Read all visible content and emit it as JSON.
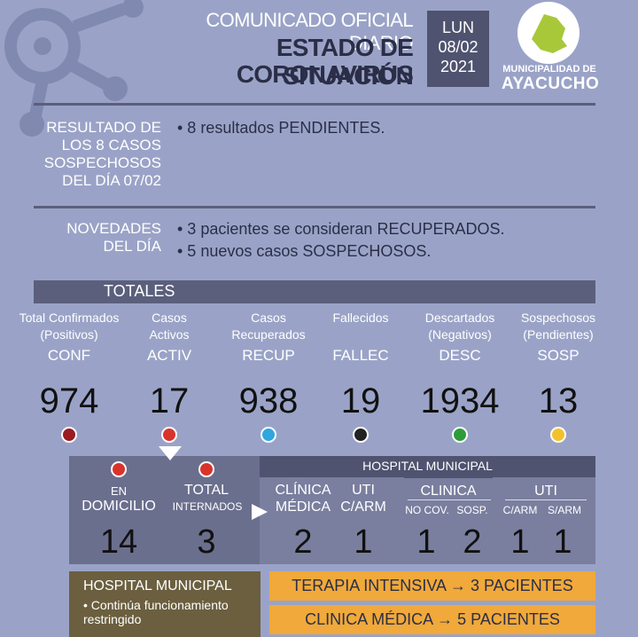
{
  "header": {
    "line1": "COMUNICADO OFICIAL DIARIO",
    "line2": "ESTADO DE SITUACIÓN",
    "line3": "CORONAVIRUS",
    "day": "LUN",
    "date": "08/02",
    "year": "2021",
    "logo_line1": "MUNICIPALIDAD DE",
    "logo_line2": "AYACUCHO"
  },
  "results": {
    "label_lines": [
      "RESULTADO DE",
      "LOS 8 CASOS",
      "SOSPECHOSOS",
      "DEL DÍA 07/02"
    ],
    "bullets": [
      "• 8 resultados PENDIENTES."
    ]
  },
  "news": {
    "label_lines": [
      "NOVEDADES",
      "DEL DÍA"
    ],
    "bullets": [
      "• 3 pacientes se consideran RECUPERADOS.",
      "• 5 nuevos casos SOSPECHOSOS."
    ]
  },
  "totals": {
    "label": "TOTALES",
    "items": [
      {
        "line1": "Total Confirmados",
        "line2": "(Positivos)",
        "code": "CONF",
        "value": "974",
        "dot": "#9b1b22"
      },
      {
        "line1": "Casos",
        "line2": "Activos",
        "code": "ACTIV",
        "value": "17",
        "dot": "#d9342b"
      },
      {
        "line1": "Casos",
        "line2": "Recuperados",
        "code": "RECUP",
        "value": "938",
        "dot": "#2fa6e0"
      },
      {
        "line1": "",
        "line2": "Fallecidos",
        "code": "FALLEC",
        "value": "19",
        "dot": "#222222"
      },
      {
        "line1": "Descartados",
        "line2": "(Negativos)",
        "code": "DESC",
        "value": "1934",
        "dot": "#2e9c3b"
      },
      {
        "line1": "Sospechosos",
        "line2": "(Pendientes)",
        "code": "SOSP",
        "value": "13",
        "dot": "#f2c12e"
      }
    ]
  },
  "active": {
    "domicilio_l1": "EN",
    "domicilio_l2": "DOMICILIO",
    "domicilio_value": "14",
    "internados_l1": "TOTAL",
    "internados_l2": "INTERNADOS",
    "internados_value": "3",
    "hospital_label": "HOSPITAL MUNICIPAL",
    "clinica_medica_l1": "CLÍNICA",
    "clinica_medica_l2": "MÉDICA",
    "clinica_medica_value": "2",
    "uti_l1": "UTI",
    "uti_l2": "C/ARM",
    "uti_value": "1",
    "clinica_label": "CLINICA",
    "nocov_label": "NO COV.",
    "nocov_value": "1",
    "sosp_label": "SOSP.",
    "sosp_value": "2",
    "uti2_label": "UTI",
    "carm_label": "C/ARM",
    "carm_value": "1",
    "sarm_label": "S/ARM",
    "sarm_value": "1"
  },
  "footer": {
    "hospital_title": "HOSPITAL MUNICIPAL",
    "hospital_note_l1": "• Continúa funcionamiento",
    "hospital_note_l2": "restringido",
    "terapia": "TERAPIA INTENSIVA → 3 PACIENTES",
    "clinica": "CLINICA MÉDICA → 5 PACIENTES"
  },
  "colors": {
    "background": "#9aa3c7",
    "navy": "#2b2e47",
    "bar": "#5b5f7c",
    "orange": "#f0a93a",
    "logo_green": "#a8c83a"
  }
}
